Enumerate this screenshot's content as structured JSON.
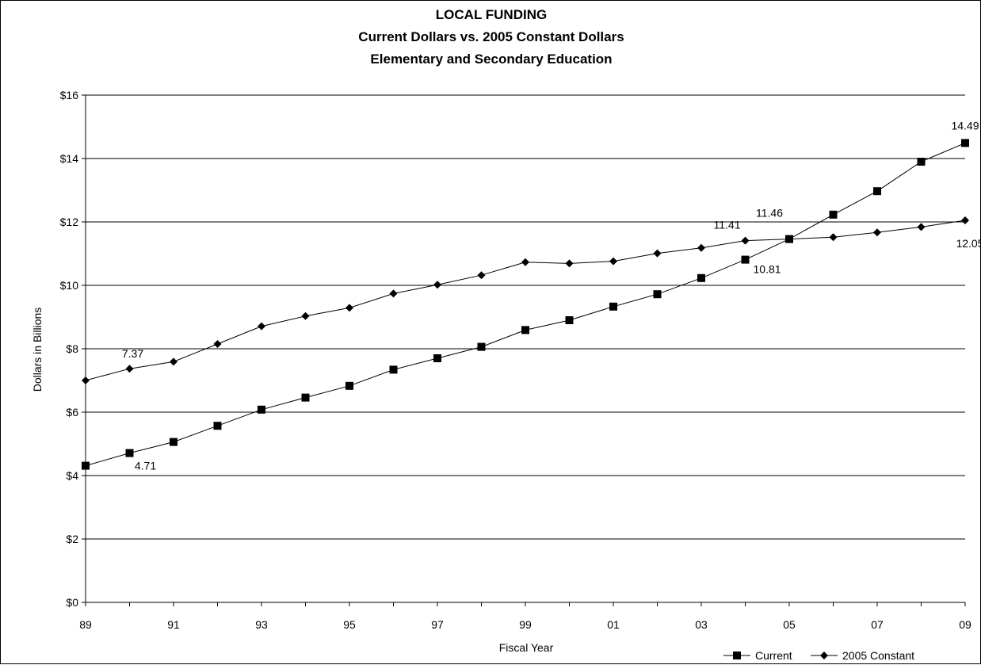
{
  "chart_data": {
    "type": "line",
    "title": [
      "LOCAL FUNDING",
      "Current Dollars vs. 2005 Constant Dollars",
      "Elementary and Secondary Education"
    ],
    "xlabel": "Fiscal Year",
    "ylabel": "Dollars in Billions",
    "x": [
      "89",
      "90",
      "91",
      "92",
      "93",
      "94",
      "95",
      "96",
      "97",
      "98",
      "99",
      "00",
      "01",
      "02",
      "03",
      "04",
      "05",
      "06",
      "07",
      "08",
      "09"
    ],
    "x_tick_labels": [
      "89",
      "91",
      "93",
      "95",
      "97",
      "99",
      "01",
      "03",
      "05",
      "07",
      "09"
    ],
    "y_tick_labels": [
      "$0",
      "$2",
      "$4",
      "$6",
      "$8",
      "$10",
      "$12",
      "$14",
      "$16"
    ],
    "ylim": [
      0,
      16
    ],
    "y_tick_step": 2,
    "grid": "horizontal",
    "legend_position": "bottom-right",
    "series": [
      {
        "name": "Current",
        "marker": "square",
        "values": [
          4.31,
          4.71,
          5.06,
          5.57,
          6.08,
          6.46,
          6.83,
          7.34,
          7.7,
          8.06,
          8.59,
          8.9,
          9.33,
          9.72,
          10.23,
          10.81,
          11.46,
          12.23,
          12.97,
          13.9,
          14.49
        ]
      },
      {
        "name": "2005 Constant",
        "marker": "diamond",
        "values": [
          7.0,
          7.37,
          7.59,
          8.15,
          8.71,
          9.03,
          9.29,
          9.74,
          10.02,
          10.32,
          10.73,
          10.69,
          10.76,
          11.01,
          11.18,
          11.41,
          11.46,
          11.52,
          11.67,
          11.84,
          12.05
        ]
      }
    ],
    "data_labels": [
      {
        "series": 0,
        "index": 1,
        "text": "4.71"
      },
      {
        "series": 0,
        "index": 15,
        "text": "10.81"
      },
      {
        "series": 0,
        "index": 16,
        "text": "11.46"
      },
      {
        "series": 0,
        "index": 20,
        "text": "14.49"
      },
      {
        "series": 1,
        "index": 1,
        "text": "7.37"
      },
      {
        "series": 1,
        "index": 15,
        "text": "11.41"
      },
      {
        "series": 1,
        "index": 20,
        "text": "12.05"
      }
    ]
  }
}
